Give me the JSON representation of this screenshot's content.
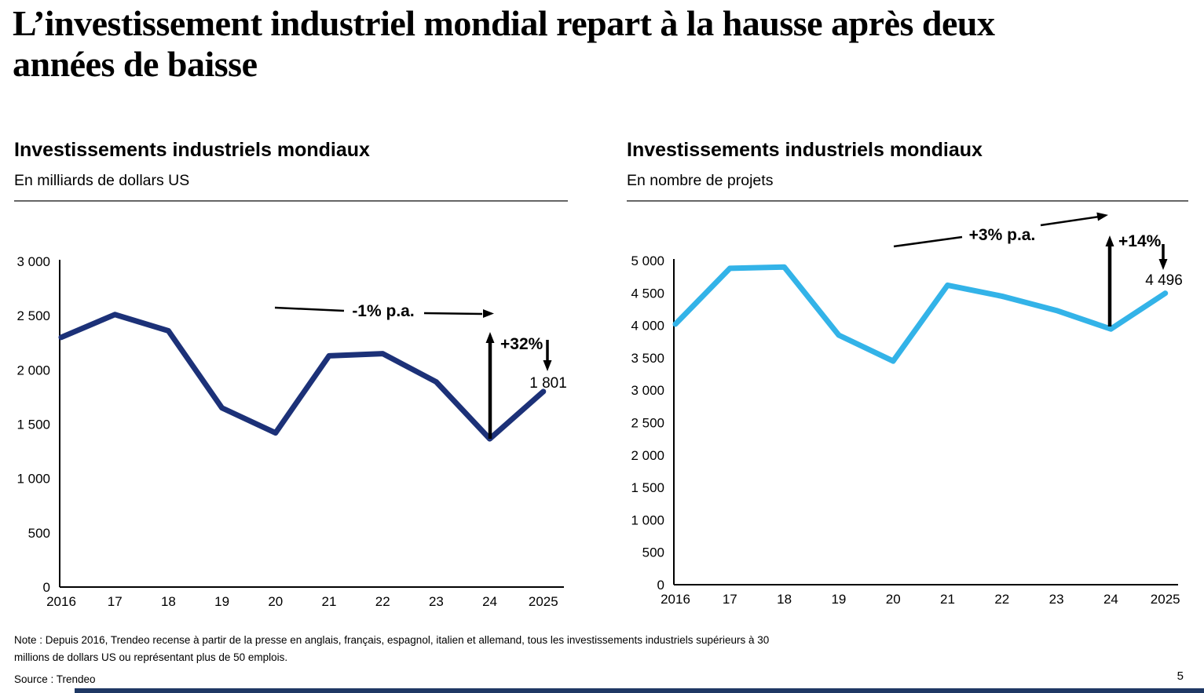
{
  "title": {
    "line1": "L’investissement industriel mondial repart à la hausse après deux",
    "line2": "années de baisse"
  },
  "chart_data": [
    {
      "type": "line",
      "title": "Investissements industriels mondiaux",
      "subtitle": "En milliards de dollars US",
      "categories": [
        "2016",
        "17",
        "18",
        "19",
        "20",
        "21",
        "22",
        "23",
        "24",
        "2025"
      ],
      "values": [
        2300,
        2510,
        2360,
        1650,
        1420,
        2130,
        2150,
        1890,
        1365,
        1801
      ],
      "ylim": [
        0,
        3000
      ],
      "ytick_labels": [
        "0",
        "500",
        "1 000",
        "1 500",
        "2 000",
        "2 500",
        "3 000"
      ],
      "grid": false,
      "legend": "none",
      "line_color": "#1c3178",
      "annotations": {
        "trend_label": "-1% p.a.",
        "growth_label": "+32%",
        "end_value_label": "1 801"
      }
    },
    {
      "type": "line",
      "title": "Investissements industriels mondiaux",
      "subtitle": "En nombre de projets",
      "categories": [
        "2016",
        "17",
        "18",
        "19",
        "20",
        "21",
        "22",
        "23",
        "24",
        "2025"
      ],
      "values": [
        4020,
        4880,
        4900,
        3850,
        3450,
        4620,
        4450,
        4230,
        3944,
        4496
      ],
      "ylim": [
        0,
        5000
      ],
      "ytick_labels": [
        "0",
        "500",
        "1 000",
        "1 500",
        "2 000",
        "2 500",
        "3 000",
        "3 500",
        "4 000",
        "4 500",
        "5 000"
      ],
      "grid": false,
      "legend": "none",
      "line_color": "#33b3e8",
      "annotations": {
        "trend_label": "+3% p.a.",
        "growth_label": "+14%",
        "end_value_label": "4 496"
      }
    }
  ],
  "footer": {
    "note": "Note : Depuis 2016, Trendeo recense à partir de la presse en anglais, français, espagnol, italien et allemand, tous les investissements industriels supérieurs à 30 millions de dollars US ou représentant plus de 50 emplois.",
    "source": "Source : Trendeo",
    "page_number": "5"
  },
  "colors": {
    "axis": "#000000",
    "annotation": "#000000",
    "accent_bar": "#1f3864",
    "divider": "#666666"
  }
}
